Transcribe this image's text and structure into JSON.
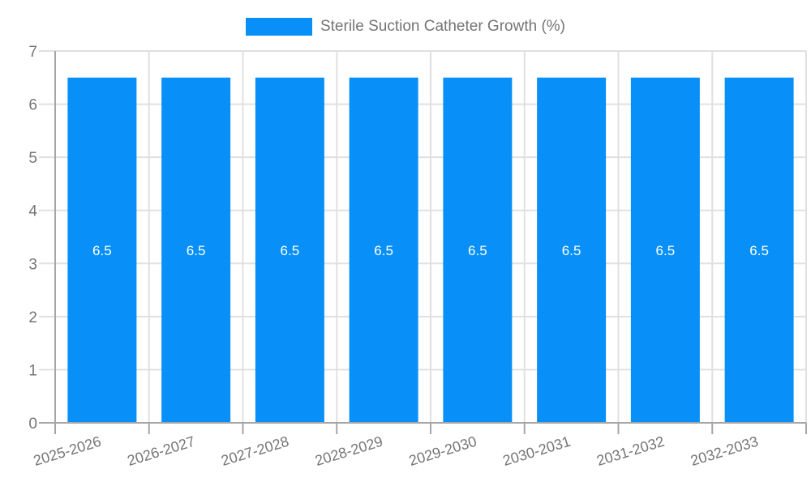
{
  "chart_data": {
    "type": "bar",
    "title": "Sterile Suction Catheter Growth (%)",
    "categories": [
      "2025-2026",
      "2026-2027",
      "2027-2028",
      "2028-2029",
      "2029-2030",
      "2030-2031",
      "2031-2032",
      "2032-2033"
    ],
    "series": [
      {
        "name": "Sterile Suction Catheter Growth (%)",
        "values": [
          6.5,
          6.5,
          6.5,
          6.5,
          6.5,
          6.5,
          6.5,
          6.5
        ],
        "color": "#0890F8",
        "data_labels": [
          "6.5",
          "6.5",
          "6.5",
          "6.5",
          "6.5",
          "6.5",
          "6.5",
          "6.5"
        ],
        "data_label_color": "#ffffff"
      }
    ],
    "xlabel": "",
    "ylabel": "",
    "ylim": [
      0,
      7
    ],
    "y_tick_labels": [
      "0",
      "1",
      "2",
      "3",
      "4",
      "5",
      "6",
      "7"
    ],
    "legend_position": "top-center",
    "grid": {
      "horizontal": true,
      "vertical": true,
      "color": "#e0e0e0"
    },
    "axis": {
      "line_color": "#a6a6a6",
      "text_color": "#757575"
    },
    "background": "#ffffff"
  }
}
